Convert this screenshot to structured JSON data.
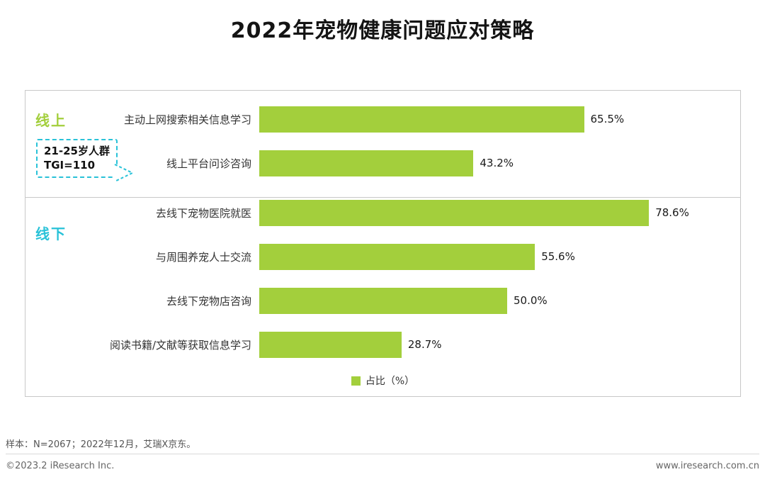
{
  "title": "2022年宠物健康问题应对策略",
  "chart_data": {
    "type": "bar",
    "orientation": "horizontal",
    "title": "2022年宠物健康问题应对策略",
    "categories": [
      "主动上网搜索相关信息学习",
      "线上平台问诊咨询",
      "去线下宠物医院就医",
      "与周围养宠人士交流",
      "去线下宠物店咨询",
      "阅读书籍/文献等获取信息学习"
    ],
    "values": [
      65.5,
      43.2,
      78.6,
      55.6,
      50.0,
      28.7
    ],
    "value_labels": [
      "65.5%",
      "43.2%",
      "78.6%",
      "55.6%",
      "50.0%",
      "28.7%"
    ],
    "groups": [
      {
        "label": "线上",
        "color": "#a3cf3c",
        "rows": [
          0,
          1
        ]
      },
      {
        "label": "线下",
        "color": "#29c2d8",
        "rows": [
          2,
          3,
          4,
          5
        ]
      }
    ],
    "legend": "占比（%）",
    "legend_position": "bottom-center",
    "bar_color": "#a3cf3c",
    "xlabel": "",
    "ylabel": "",
    "xlim": [
      0,
      100
    ],
    "grid": false
  },
  "annotation": {
    "line1": "21-25岁人群",
    "line2": "TGI=110",
    "border_color": "#29c2d8"
  },
  "footer": {
    "sample_note": "样本：N=2067；2022年12月，艾瑞X京东。",
    "copyright": "©2023.2 iResearch Inc.",
    "website": "www.iresearch.com.cn"
  }
}
